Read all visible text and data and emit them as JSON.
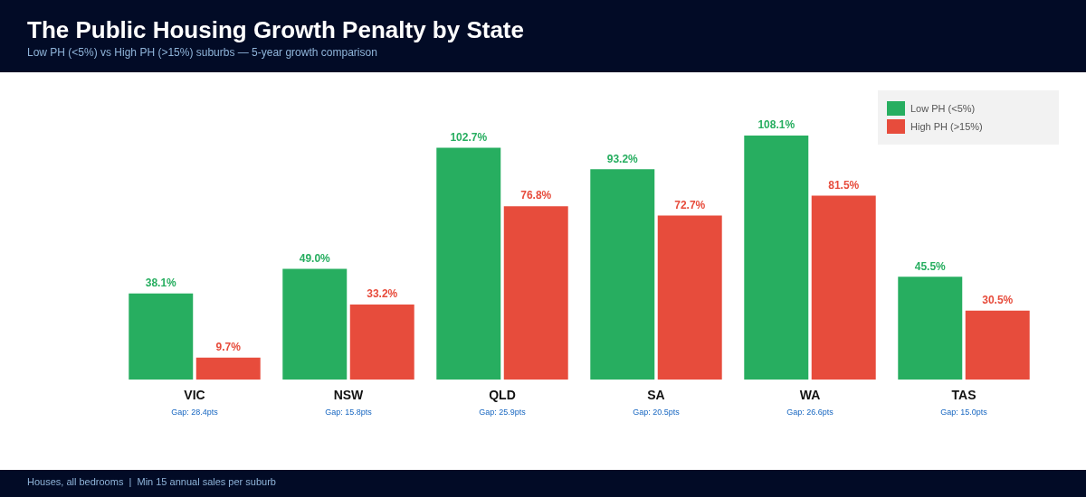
{
  "chart_data": {
    "type": "bar",
    "title": "The Public Housing Growth Penalty by State",
    "subtitle": "Low PH (<5%) vs High PH (>15%) suburbs — 5-year growth comparison",
    "categories": [
      "VIC",
      "NSW",
      "QLD",
      "SA",
      "WA",
      "TAS"
    ],
    "series": [
      {
        "name": "Low PH (<5%)",
        "color": "#27ae60",
        "values": [
          38.1,
          49.0,
          102.7,
          93.2,
          108.1,
          45.5
        ],
        "value_labels": [
          "38.1%",
          "49.0%",
          "102.7%",
          "93.2%",
          "108.1%",
          "45.5%"
        ]
      },
      {
        "name": "High PH (>15%)",
        "color": "#e74c3c",
        "values": [
          9.7,
          33.2,
          76.8,
          72.7,
          81.5,
          30.5
        ],
        "value_labels": [
          "9.7%",
          "33.2%",
          "76.8%",
          "72.7%",
          "81.5%",
          "30.5%"
        ]
      }
    ],
    "annotations": [
      "Gap: 28.4pts",
      "Gap: 15.8pts",
      "Gap: 25.9pts",
      "Gap: 20.5pts",
      "Gap: 26.6pts",
      "Gap: 15.0pts",
      "Houses, all bedrooms  |  Min 15 annual sales per suburb"
    ],
    "legend": "top right",
    "grid": false,
    "tick_labels": "x"
  }
}
